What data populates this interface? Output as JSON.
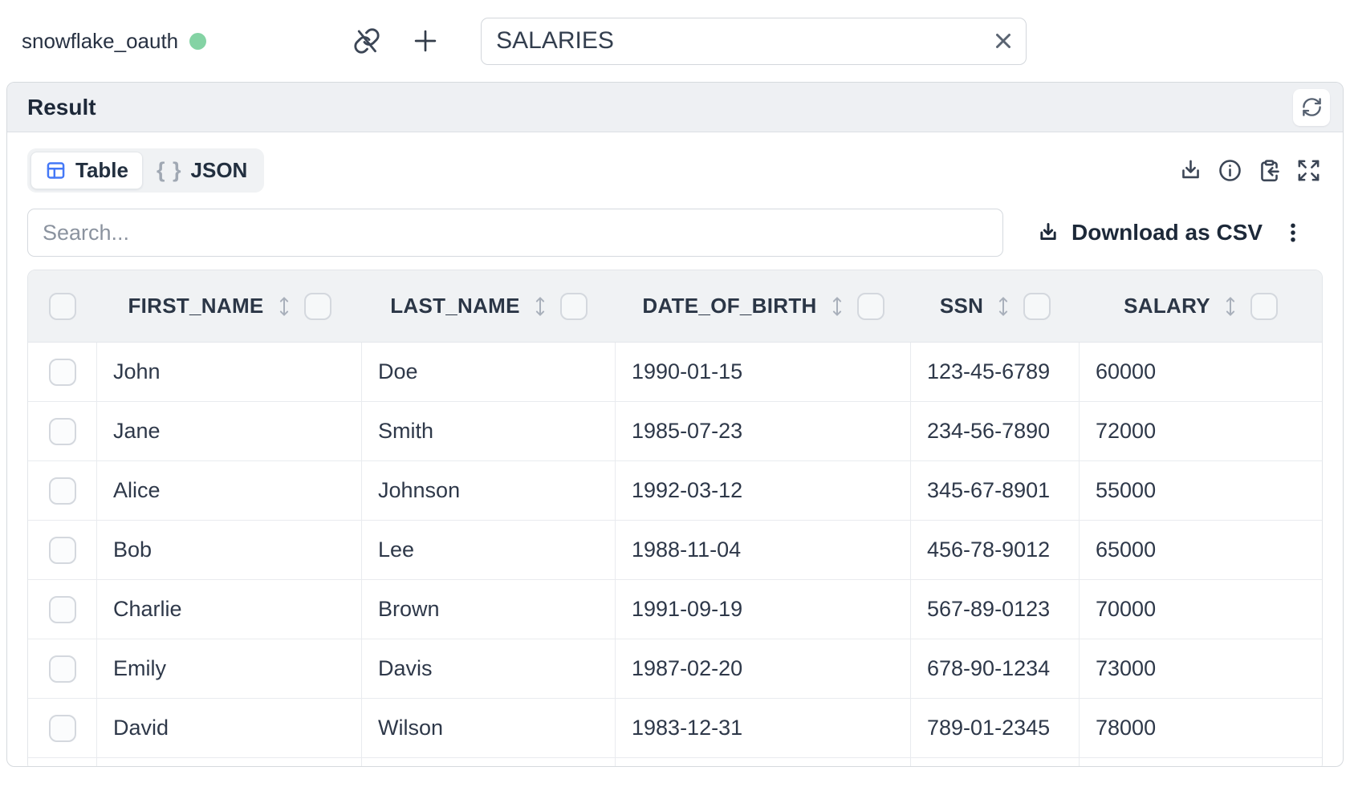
{
  "topbar": {
    "connection_name": "snowflake_oauth",
    "table_name_value": "SALARIES"
  },
  "result": {
    "title": "Result"
  },
  "view_tabs": {
    "table_label": "Table",
    "json_label": "JSON",
    "json_glyph": "{ }"
  },
  "toolbar": {
    "search_placeholder": "Search...",
    "download_csv_label": "Download as CSV"
  },
  "data_table": {
    "columns": [
      "FIRST_NAME",
      "LAST_NAME",
      "DATE_OF_BIRTH",
      "SSN",
      "SALARY"
    ],
    "rows": [
      [
        "John",
        "Doe",
        "1990-01-15",
        "123-45-6789",
        "60000"
      ],
      [
        "Jane",
        "Smith",
        "1985-07-23",
        "234-56-7890",
        "72000"
      ],
      [
        "Alice",
        "Johnson",
        "1992-03-12",
        "345-67-8901",
        "55000"
      ],
      [
        "Bob",
        "Lee",
        "1988-11-04",
        "456-78-9012",
        "65000"
      ],
      [
        "Charlie",
        "Brown",
        "1991-09-19",
        "567-89-0123",
        "70000"
      ],
      [
        "Emily",
        "Davis",
        "1987-02-20",
        "678-90-1234",
        "73000"
      ],
      [
        "David",
        "Wilson",
        "1983-12-31",
        "789-01-2345",
        "78000"
      ]
    ]
  },
  "icons": {
    "status_dot": "green-circle",
    "unlink": "broken-link-with-slash",
    "add": "plus",
    "clear": "x-cross",
    "refresh": "circular-arrows",
    "table_view": "table-grid",
    "json_view": "{ }",
    "download": "arrow-down-to-tray",
    "info": "i-in-circle",
    "copy_result": "clipboard-with-arrow",
    "expand": "four-corner-arrows",
    "more": "vertical-ellipsis",
    "sort": "up-down-arrow"
  },
  "colors": {
    "accent_blue": "#4478f7",
    "status_green": "#84d3a4",
    "header_bg": "#f0f2f4",
    "panel_bar_bg": "#eef0f3",
    "text_dark": "#1d2939"
  }
}
